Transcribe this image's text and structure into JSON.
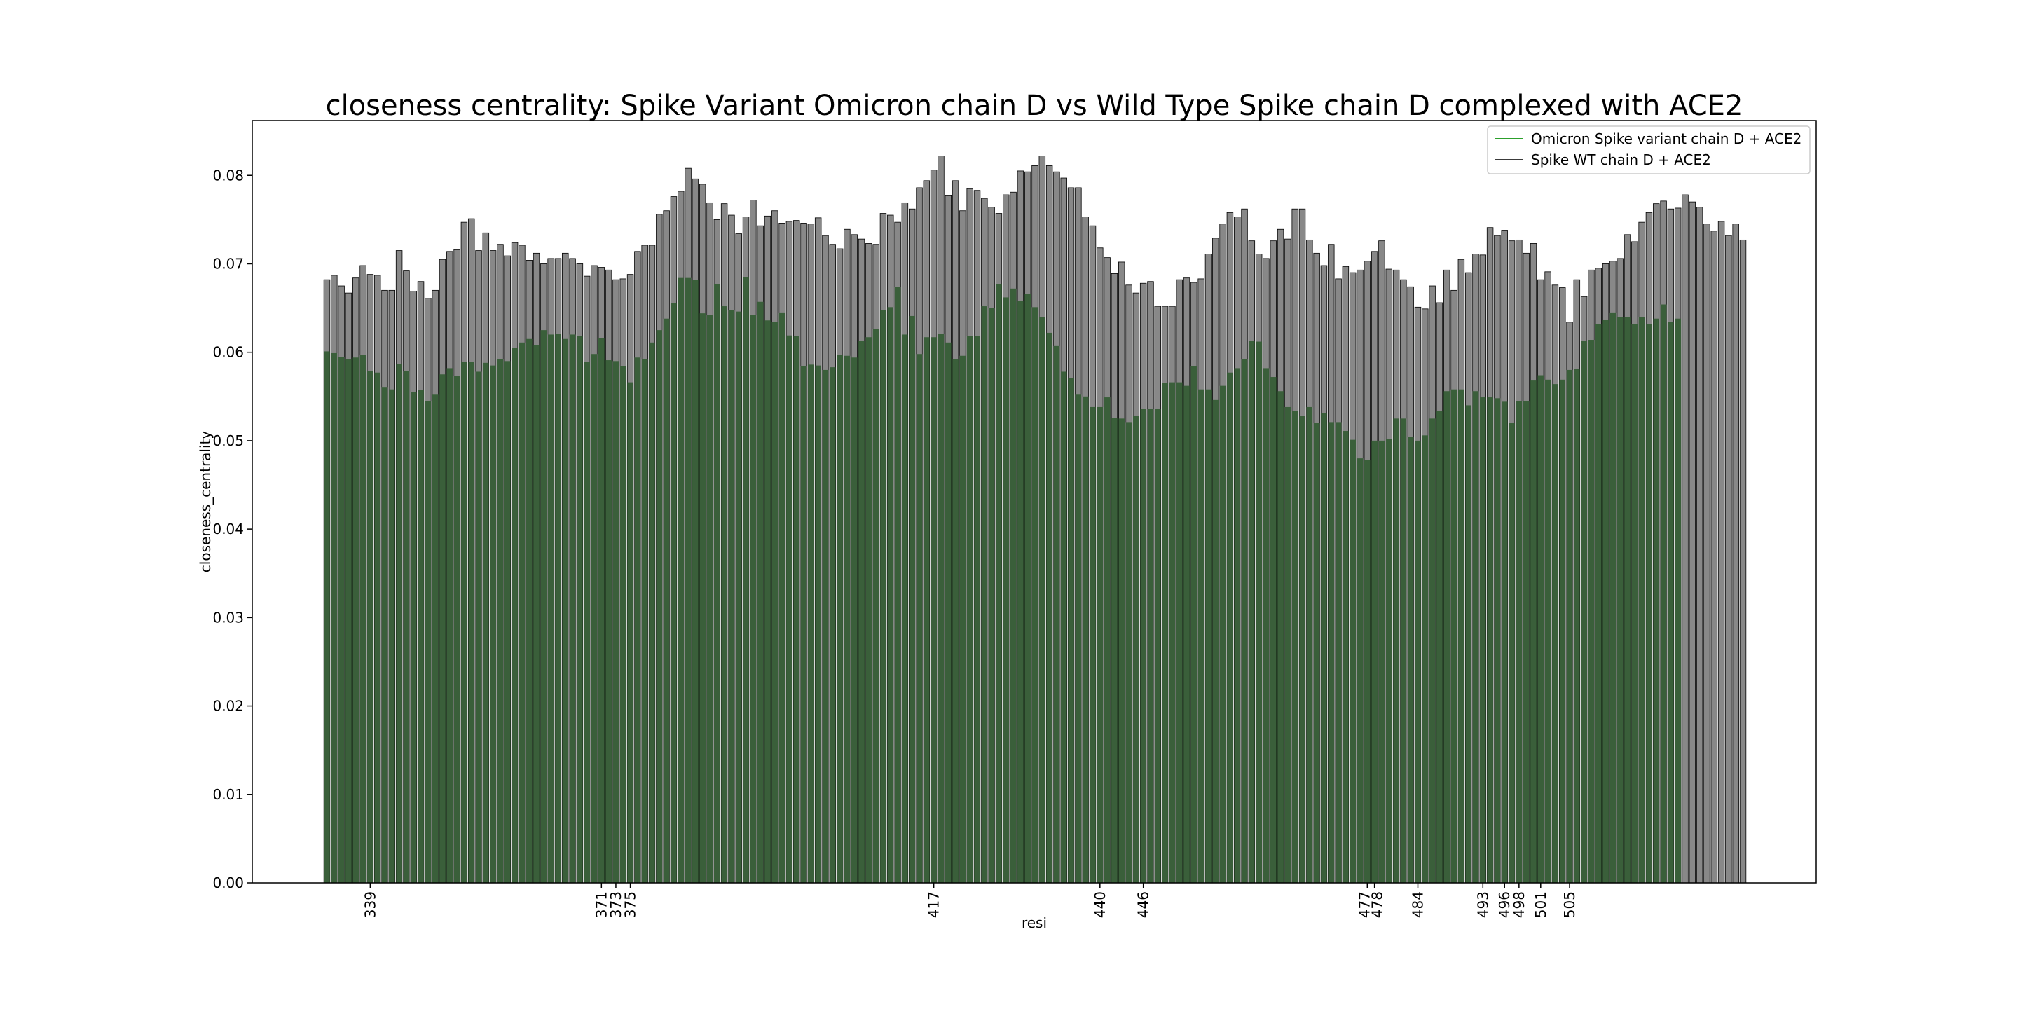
{
  "chart_data": {
    "type": "bar",
    "title": "closeness centrality: Spike Variant Omicron chain D vs Wild Type Spike chain D complexed with ACE2",
    "xlabel": "resi",
    "ylabel": "closeness_centrality",
    "ylim": [
      0,
      0.0862
    ],
    "y_ticks": [
      "0.00",
      "0.01",
      "0.02",
      "0.03",
      "0.04",
      "0.05",
      "0.06",
      "0.07",
      "0.08"
    ],
    "grid": false,
    "legend_position": "top-right",
    "x_start_resi": 333,
    "x_tick_labels": [
      "339",
      "371",
      "373",
      "375",
      "417",
      "440",
      "446",
      "477",
      "478",
      "484",
      "493",
      "496",
      "498",
      "501",
      "505"
    ],
    "series": [
      {
        "name": "Omicron Spike variant chain D + ACE2",
        "legend_line_color": "#2ca02c",
        "bar_color": "#3a5f3a",
        "values": [
          0.0601,
          0.0599,
          0.0595,
          0.0592,
          0.0594,
          0.0597,
          0.0579,
          0.0577,
          0.056,
          0.0558,
          0.0587,
          0.0579,
          0.0555,
          0.0557,
          0.0545,
          0.0552,
          0.0575,
          0.0582,
          0.0573,
          0.0589,
          0.0589,
          0.0578,
          0.0588,
          0.0585,
          0.0592,
          0.059,
          0.0605,
          0.0611,
          0.0615,
          0.0608,
          0.0625,
          0.062,
          0.0621,
          0.0615,
          0.062,
          0.0618,
          0.0589,
          0.0598,
          0.0616,
          0.0591,
          0.059,
          0.0584,
          0.0566,
          0.0594,
          0.0592,
          0.0611,
          0.0625,
          0.0638,
          0.0656,
          0.0684,
          0.0684,
          0.0682,
          0.0644,
          0.0642,
          0.0677,
          0.0652,
          0.0648,
          0.0646,
          0.0685,
          0.0642,
          0.0657,
          0.0636,
          0.0634,
          0.0645,
          0.0619,
          0.0618,
          0.0584,
          0.0586,
          0.0585,
          0.058,
          0.0583,
          0.0597,
          0.0596,
          0.0594,
          0.0613,
          0.0617,
          0.0626,
          0.0648,
          0.0651,
          0.0674,
          0.062,
          0.0641,
          0.0598,
          0.0617,
          0.0617,
          0.0621,
          0.0611,
          0.0592,
          0.0596,
          0.0618,
          0.0618,
          0.0652,
          0.065,
          0.0677,
          0.0662,
          0.0672,
          0.0658,
          0.0666,
          0.0651,
          0.064,
          0.0622,
          0.0607,
          0.0578,
          0.0571,
          0.0552,
          0.055,
          0.0538,
          0.0538,
          0.0549,
          0.0526,
          0.0525,
          0.0521,
          0.0528,
          0.0536,
          0.0536,
          0.0536,
          0.0565,
          0.0566,
          0.0566,
          0.0562,
          0.0584,
          0.0558,
          0.0558,
          0.0546,
          0.0562,
          0.0577,
          0.0582,
          0.0592,
          0.0613,
          0.0612,
          0.0582,
          0.0572,
          0.0556,
          0.0538,
          0.0534,
          0.0528,
          0.0538,
          0.052,
          0.0531,
          0.0521,
          0.0521,
          0.0511,
          0.0501,
          0.048,
          0.0478,
          0.05,
          0.05,
          0.0502,
          0.0525,
          0.0525,
          0.0504,
          0.05,
          0.0506,
          0.0525,
          0.0534,
          0.0556,
          0.0558,
          0.0558,
          0.054,
          0.0556,
          0.0549,
          0.0549,
          0.0548,
          0.0544,
          0.052,
          0.0545,
          0.0545,
          0.0568,
          0.0574,
          0.0569,
          0.0564,
          0.0569,
          0.058,
          0.0581,
          0.0613,
          0.0614,
          0.0632,
          0.0637,
          0.0645,
          0.064,
          0.064,
          0.0632,
          0.064,
          0.0632,
          0.0638,
          0.0654,
          0.0634,
          0.0638
        ]
      },
      {
        "name": "Spike WT chain D + ACE2",
        "legend_line_color": "#3a3a3a",
        "bar_color": "#888888",
        "values": [
          0.0682,
          0.0687,
          0.0675,
          0.0667,
          0.0684,
          0.0698,
          0.0688,
          0.0687,
          0.067,
          0.067,
          0.0715,
          0.0692,
          0.0669,
          0.068,
          0.0661,
          0.067,
          0.0705,
          0.0714,
          0.0716,
          0.0747,
          0.0751,
          0.0715,
          0.0735,
          0.0715,
          0.0722,
          0.0709,
          0.0724,
          0.0721,
          0.0704,
          0.0712,
          0.07,
          0.0706,
          0.0706,
          0.0712,
          0.0706,
          0.07,
          0.0686,
          0.0698,
          0.0696,
          0.0693,
          0.0682,
          0.0683,
          0.0688,
          0.0714,
          0.0721,
          0.0721,
          0.0756,
          0.076,
          0.0776,
          0.0782,
          0.0808,
          0.0796,
          0.079,
          0.0769,
          0.075,
          0.0768,
          0.0755,
          0.0734,
          0.0753,
          0.0772,
          0.0743,
          0.0754,
          0.076,
          0.0746,
          0.0748,
          0.0749,
          0.0746,
          0.0745,
          0.0752,
          0.0732,
          0.0722,
          0.0717,
          0.0739,
          0.0733,
          0.0728,
          0.0723,
          0.0722,
          0.0757,
          0.0755,
          0.0747,
          0.0769,
          0.0762,
          0.0786,
          0.0794,
          0.0806,
          0.0822,
          0.0777,
          0.0794,
          0.076,
          0.0785,
          0.0783,
          0.0774,
          0.0764,
          0.0757,
          0.0778,
          0.0781,
          0.0805,
          0.0804,
          0.0811,
          0.0822,
          0.0811,
          0.0804,
          0.0797,
          0.0786,
          0.0786,
          0.0753,
          0.0743,
          0.0718,
          0.0707,
          0.0689,
          0.0702,
          0.0676,
          0.0667,
          0.0678,
          0.068,
          0.0652,
          0.0652,
          0.0652,
          0.0682,
          0.0684,
          0.0679,
          0.0683,
          0.0711,
          0.0729,
          0.0745,
          0.0758,
          0.0753,
          0.0762,
          0.0726,
          0.0711,
          0.0706,
          0.0726,
          0.0739,
          0.0728,
          0.0762,
          0.0762,
          0.0727,
          0.0712,
          0.0698,
          0.0722,
          0.0683,
          0.0697,
          0.069,
          0.0693,
          0.0703,
          0.0714,
          0.0726,
          0.0694,
          0.0693,
          0.0682,
          0.0674,
          0.0651,
          0.0649,
          0.0675,
          0.0656,
          0.0693,
          0.067,
          0.0705,
          0.069,
          0.0711,
          0.071,
          0.0741,
          0.0732,
          0.0738,
          0.0726,
          0.0727,
          0.0712,
          0.0723,
          0.0682,
          0.0691,
          0.0676,
          0.0673,
          0.0634,
          0.0682,
          0.0663,
          0.0693,
          0.0695,
          0.07,
          0.0703,
          0.0706,
          0.0733,
          0.0725,
          0.0747,
          0.0758,
          0.0768,
          0.0771,
          0.0762,
          0.0763,
          0.0778,
          0.077,
          0.0764,
          0.0745,
          0.0737,
          0.0748,
          0.0732,
          0.0745,
          0.0727
        ]
      }
    ]
  }
}
